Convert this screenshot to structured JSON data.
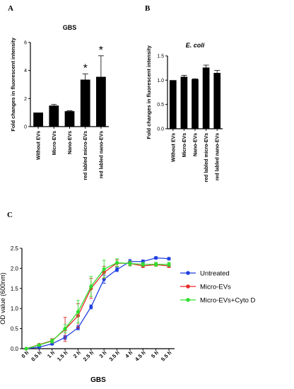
{
  "panels": {
    "a": "A",
    "b": "B",
    "c": "C"
  },
  "chart_data": [
    {
      "type": "bar",
      "title": "GBS",
      "ylabel": "Fold changes in fluorescent intensity",
      "xlabel": "",
      "categories": [
        "Without EVs",
        "Micro-EVs",
        "Nano-EVs",
        "red labled micro-EVs",
        "red labled nano-EVs"
      ],
      "values": [
        1.0,
        1.5,
        1.1,
        3.35,
        3.55
      ],
      "errors": [
        0.0,
        0.08,
        0.03,
        0.4,
        1.5
      ],
      "significance": [
        "",
        "",
        "",
        "*",
        "*"
      ],
      "ylim": [
        0,
        6
      ],
      "yticks": [
        "0",
        "2",
        "4",
        "6"
      ],
      "bar_color": "#000000"
    },
    {
      "type": "bar",
      "title": "E. coli",
      "ylabel": "Fold changes in fluorescent intensity",
      "xlabel": "",
      "categories": [
        "Without EVs",
        "Micro-EVs",
        "Nano-EVs",
        "red labled micro-EVs",
        "red labled nano-EVs"
      ],
      "values": [
        1.0,
        1.07,
        1.02,
        1.26,
        1.15
      ],
      "errors": [
        0.0,
        0.03,
        0.01,
        0.05,
        0.05
      ],
      "ylim": [
        0,
        1.5
      ],
      "yticks": [
        "0.0",
        "0.5",
        "1.0",
        "1.5"
      ],
      "bar_color": "#000000"
    },
    {
      "type": "line",
      "title": "",
      "xlabel": "GBS",
      "ylabel": "OD value (600nm)",
      "categories": [
        "0 h",
        "0.5 h",
        "1 h",
        "1.5 h",
        "2 h",
        "2.5 h",
        "3 h",
        "3.5 h",
        "4 h",
        "4.5 h",
        "5 h",
        "5.5 h"
      ],
      "ylim": [
        0,
        2.5
      ],
      "yticks": [
        "0.0",
        "0.5",
        "1.0",
        "1.5",
        "2.0",
        "2.5"
      ],
      "legend_position": "right",
      "series": [
        {
          "name": "Untreated",
          "color": "#1f3fe0",
          "values": [
            0.0,
            0.04,
            0.12,
            0.28,
            0.52,
            1.04,
            1.73,
            1.97,
            2.17,
            2.17,
            2.26,
            2.24
          ],
          "errors": [
            0,
            0.01,
            0.02,
            0.05,
            0.05,
            0.05,
            0.1,
            0.05,
            0.05,
            0.04,
            0.03,
            0.03
          ]
        },
        {
          "name": "Micro-EVs",
          "color": "#e62a2a",
          "values": [
            0.0,
            0.1,
            0.2,
            0.48,
            0.82,
            1.5,
            1.9,
            2.13,
            2.12,
            2.06,
            2.09,
            2.06
          ],
          "errors": [
            0,
            0.02,
            0.05,
            0.3,
            0.3,
            0.25,
            0.15,
            0.08,
            0.05,
            0.04,
            0.04,
            0.04
          ]
        },
        {
          "name": "Micro-EVs+Cyto D",
          "color": "#2ee02e",
          "values": [
            0.0,
            0.09,
            0.19,
            0.5,
            0.92,
            1.55,
            1.98,
            2.14,
            2.12,
            2.1,
            2.1,
            2.1
          ],
          "errors": [
            0,
            0.02,
            0.05,
            0.1,
            0.28,
            0.25,
            0.22,
            0.1,
            0.06,
            0.05,
            0.05,
            0.05
          ]
        }
      ]
    }
  ]
}
